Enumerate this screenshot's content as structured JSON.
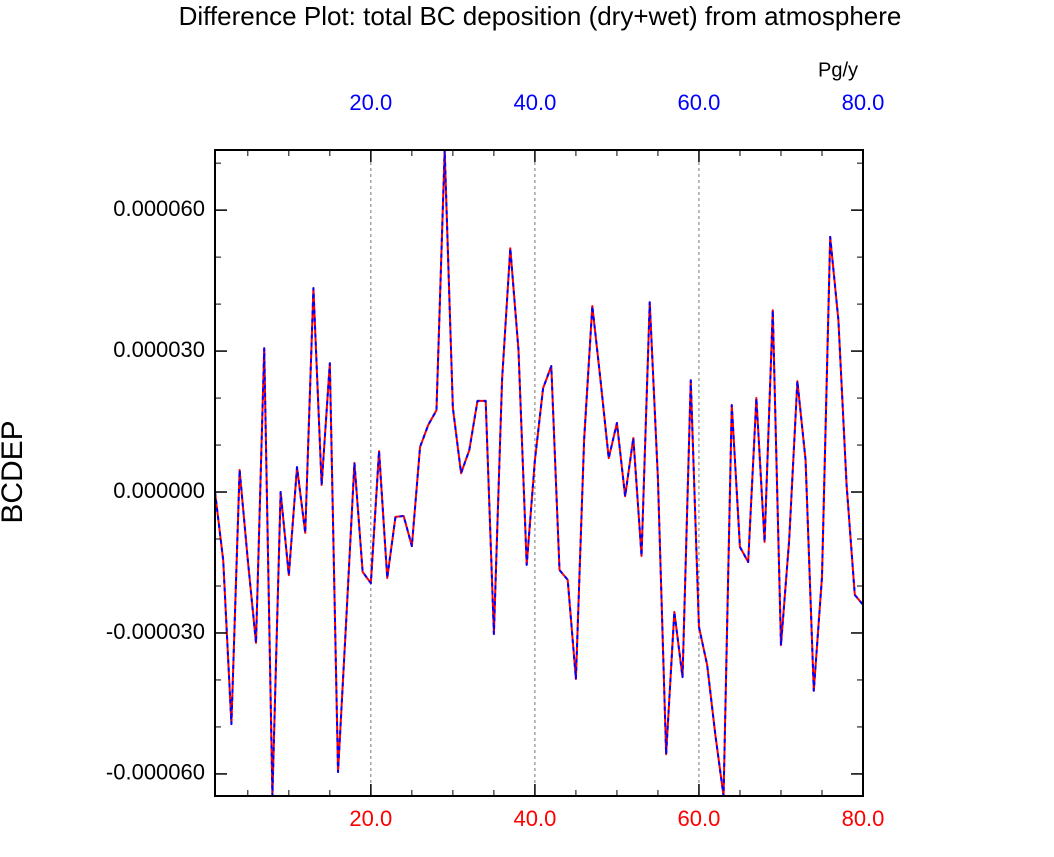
{
  "chart_data": {
    "type": "line",
    "title": "Difference Plot: total BC deposition (dry+wet) from atmosphere",
    "ylabel": "BCDEP",
    "x2label": "Pg/y",
    "x": [
      1,
      2,
      3,
      4,
      5,
      6,
      7,
      8,
      9,
      10,
      11,
      12,
      13,
      14,
      15,
      16,
      17,
      18,
      19,
      20,
      21,
      22,
      23,
      24,
      25,
      26,
      27,
      28,
      29,
      30,
      31,
      32,
      33,
      34,
      35,
      36,
      37,
      38,
      39,
      40,
      41,
      42,
      43,
      44,
      45,
      46,
      47,
      48,
      49,
      50,
      51,
      52,
      53,
      54,
      55,
      56,
      57,
      58,
      59,
      60,
      61,
      62,
      63,
      64,
      65,
      66,
      67,
      68,
      69,
      70,
      71,
      72,
      73,
      74,
      75,
      76,
      77,
      78,
      79,
      80
    ],
    "series": [
      {
        "color": "#ff0000",
        "dash": false,
        "values": [
          0,
          -1.45e-05,
          -4.94e-05,
          4.7e-06,
          -1.45e-05,
          -3.21e-05,
          3.06e-05,
          -6.47e-05,
          0,
          -1.77e-05,
          5.3e-06,
          -8.7e-06,
          4.34e-05,
          1.5e-06,
          2.74e-05,
          -5.96e-05,
          -2.72e-05,
          6.2e-06,
          -1.7e-05,
          -1.94e-05,
          8.7e-06,
          -1.83e-05,
          -5.3e-06,
          -5.1e-06,
          -1.15e-05,
          9.6e-06,
          1.43e-05,
          1.74e-05,
          7.28e-05,
          1.79e-05,
          4e-06,
          8.9e-06,
          1.94e-05,
          1.94e-05,
          -3.02e-05,
          2.4e-05,
          5.19e-05,
          3.02e-05,
          -1.55e-05,
          6.8e-06,
          2.21e-05,
          2.68e-05,
          -1.66e-05,
          -1.87e-05,
          -3.98e-05,
          1.11e-05,
          3.96e-05,
          2.38e-05,
          7.2e-06,
          1.47e-05,
          -9e-07,
          1.15e-05,
          -1.36e-05,
          4.04e-05,
          2.8e-06,
          -5.58e-05,
          -2.55e-05,
          -3.94e-05,
          2.38e-05,
          -2.87e-05,
          -3.68e-05,
          -5.17e-05,
          -6.47e-05,
          1.85e-05,
          -1.17e-05,
          -1.49e-05,
          2e-05,
          -1.06e-05,
          3.87e-05,
          -3.26e-05,
          -1.02e-05,
          2.36e-05,
          6.8e-06,
          -4.23e-05,
          -1.81e-05,
          5.43e-05,
          3.66e-05,
          1.5e-06,
          -2.19e-05,
          -2.4e-05
        ]
      },
      {
        "color": "#0000ff",
        "dash": true,
        "values": [
          0,
          -1.45e-05,
          -4.94e-05,
          4.7e-06,
          -1.45e-05,
          -3.21e-05,
          3.06e-05,
          -6.47e-05,
          0,
          -1.77e-05,
          5.3e-06,
          -8.7e-06,
          4.34e-05,
          1.5e-06,
          2.74e-05,
          -5.96e-05,
          -2.72e-05,
          6.2e-06,
          -1.7e-05,
          -1.94e-05,
          8.7e-06,
          -1.83e-05,
          -5.3e-06,
          -5.1e-06,
          -1.15e-05,
          9.6e-06,
          1.43e-05,
          1.74e-05,
          7.28e-05,
          1.79e-05,
          4e-06,
          8.9e-06,
          1.94e-05,
          1.94e-05,
          -3.02e-05,
          2.4e-05,
          5.19e-05,
          3.02e-05,
          -1.55e-05,
          6.8e-06,
          2.21e-05,
          2.68e-05,
          -1.66e-05,
          -1.87e-05,
          -3.98e-05,
          1.11e-05,
          3.96e-05,
          2.38e-05,
          7.2e-06,
          1.47e-05,
          -9e-07,
          1.15e-05,
          -1.36e-05,
          4.04e-05,
          2.8e-06,
          -5.58e-05,
          -2.55e-05,
          -3.94e-05,
          2.38e-05,
          -2.87e-05,
          -3.68e-05,
          -5.17e-05,
          -6.47e-05,
          1.85e-05,
          -1.17e-05,
          -1.49e-05,
          2e-05,
          -1.06e-05,
          3.87e-05,
          -3.26e-05,
          -1.02e-05,
          2.36e-05,
          6.8e-06,
          -4.23e-05,
          -1.81e-05,
          5.43e-05,
          3.66e-05,
          1.5e-06,
          -2.19e-05,
          -2.4e-05
        ]
      }
    ],
    "xlim": [
      1,
      80
    ],
    "ylim": [
      -6.47e-05,
      7.28e-05
    ],
    "xticks": [
      {
        "value": 20,
        "label": "20.0"
      },
      {
        "value": 40,
        "label": "40.0"
      },
      {
        "value": 60,
        "label": "60.0"
      },
      {
        "value": 80,
        "label": "80.0"
      }
    ],
    "x2ticks": [
      {
        "value": 20,
        "label": "20.0"
      },
      {
        "value": 40,
        "label": "40.0"
      },
      {
        "value": 60,
        "label": "60.0"
      },
      {
        "value": 80,
        "label": "80.0"
      }
    ],
    "xminorticks": [
      5,
      10,
      15,
      25,
      30,
      35,
      45,
      50,
      55,
      65,
      70,
      75
    ],
    "yticks": [
      {
        "value": 6e-05,
        "label": "0.000060"
      },
      {
        "value": 3e-05,
        "label": "0.000030"
      },
      {
        "value": 0,
        "label": "0.000000"
      },
      {
        "value": -3e-05,
        "label": "-0.000030"
      },
      {
        "value": -6e-05,
        "label": "-0.000060"
      }
    ],
    "yminorticks": [
      7e-05,
      5e-05,
      4e-05,
      2e-05,
      1e-05,
      -1e-05,
      -2e-05,
      -4e-05,
      -5e-05
    ],
    "xtick_color": "#ff0000",
    "x2tick_color": "#0000ff",
    "xgrid": true
  }
}
